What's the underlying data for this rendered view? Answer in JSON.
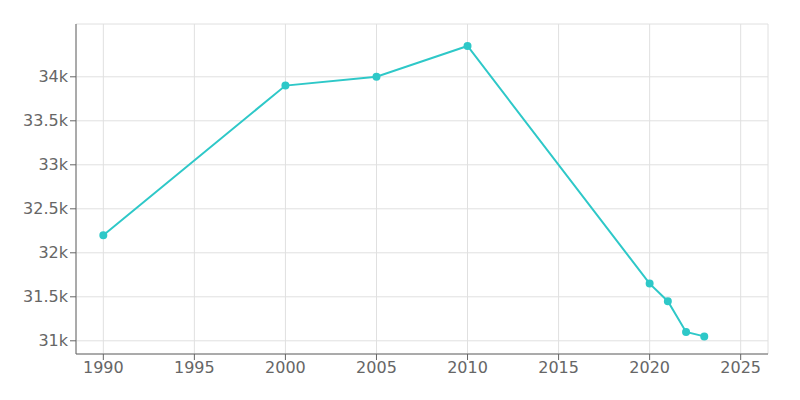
{
  "chart_data": {
    "type": "line",
    "x": [
      1990,
      2000,
      2005,
      2010,
      2020,
      2021,
      2022,
      2023
    ],
    "values": [
      32200,
      33900,
      34000,
      34350,
      31650,
      31450,
      31100,
      31050
    ],
    "color": "#2ec8c8",
    "marker": "circle",
    "xlim": [
      1988.5,
      2026.5
    ],
    "xticks": [
      1990,
      1995,
      2000,
      2005,
      2010,
      2015,
      2020,
      2025
    ],
    "ylim": [
      30850,
      34600
    ],
    "yticks": [
      {
        "value": 31000,
        "label": "31k"
      },
      {
        "value": 31500,
        "label": "31.5k"
      },
      {
        "value": 32000,
        "label": "32k"
      },
      {
        "value": 32500,
        "label": "32.5k"
      },
      {
        "value": 33000,
        "label": "33k"
      },
      {
        "value": 33500,
        "label": "33.5k"
      },
      {
        "value": 34000,
        "label": "34k"
      }
    ],
    "grid": true
  }
}
